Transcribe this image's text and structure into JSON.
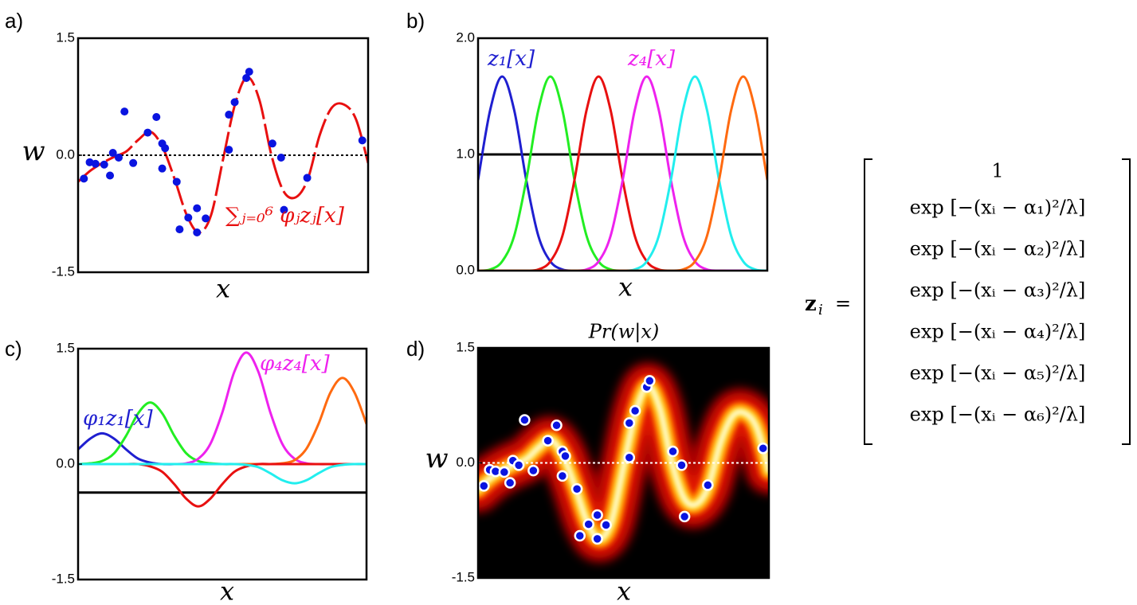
{
  "chart_data": [
    {
      "type": "line",
      "panel_label": "a)",
      "ylabel": "w",
      "xlabel": "x",
      "xlim": [
        0,
        1
      ],
      "ylim": [
        -1.5,
        1.5
      ],
      "yticks": [
        -1.5,
        {
          "value": 0,
          "label": "0.0"
        },
        1.5
      ],
      "reference_line": 0,
      "x": [
        0,
        0.0417,
        0.0833,
        0.125,
        0.1667,
        0.2083,
        0.25,
        0.2917,
        0.3333,
        0.375,
        0.4167,
        0.4583,
        0.5,
        0.5417,
        0.5833,
        0.625,
        0.6667,
        0.7083,
        0.75,
        0.7917,
        0.8333,
        0.875,
        0.9167,
        0.9583,
        1
      ],
      "series": [
        {
          "color": "#e81010",
          "style": "dashed",
          "values": [
            -0.34,
            -0.2,
            -0.1,
            -0.02,
            0.05,
            0.2,
            0.3,
            0.1,
            -0.31,
            -0.77,
            -0.99,
            -0.77,
            -0.05,
            0.66,
            1.0,
            0.71,
            0,
            -0.46,
            -0.54,
            -0.31,
            0.26,
            0.61,
            0.65,
            0.46,
            -0.1
          ]
        }
      ],
      "points": {
        "color": "#0a14e0",
        "x": [
          0.02,
          0.04,
          0.06,
          0.09,
          0.11,
          0.12,
          0.14,
          0.16,
          0.19,
          0.24,
          0.27,
          0.29,
          0.3,
          0.29,
          0.34,
          0.35,
          0.38,
          0.41,
          0.41,
          0.44,
          0.52,
          0.52,
          0.54,
          0.58,
          0.59,
          0.67,
          0.7,
          0.71,
          0.79,
          0.98
        ],
        "values": [
          -0.3,
          -0.09,
          -0.11,
          -0.12,
          -0.26,
          0.03,
          -0.03,
          0.56,
          -0.1,
          0.29,
          0.49,
          0.15,
          0.09,
          -0.17,
          -0.34,
          -0.95,
          -0.8,
          -0.99,
          -0.68,
          -0.81,
          0.07,
          0.52,
          0.68,
          0.99,
          1.07,
          0.15,
          -0.03,
          -0.7,
          -0.29,
          0.19
        ]
      },
      "annotations": [
        {
          "text": "∑ⱼ₌₀⁶ φⱼzⱼ[x]",
          "color": "#e81010"
        }
      ]
    },
    {
      "type": "line",
      "panel_label": "b)",
      "xlabel": "x",
      "xlim": [
        0,
        1
      ],
      "ylim": [
        0,
        2
      ],
      "yticks": [
        {
          "value": 0,
          "label": "0.0"
        },
        {
          "value": 1,
          "label": "1.0"
        },
        {
          "value": 2,
          "label": "2.0"
        }
      ],
      "x": [
        0,
        0.0417,
        0.0833,
        0.125,
        0.1667,
        0.2083,
        0.25,
        0.2917,
        0.3333,
        0.375,
        0.4167,
        0.4583,
        0.5,
        0.5417,
        0.5833,
        0.625,
        0.6667,
        0.7083,
        0.75,
        0.7917,
        0.8333,
        0.875,
        0.9167,
        0.9583,
        1
      ],
      "series": [
        {
          "color": "#000000",
          "x": [
            0,
            1
          ],
          "values": [
            1,
            1
          ]
        },
        {
          "color": "#1f1fd0",
          "values": [
            0.78,
            1.38,
            1.67,
            1.38,
            0.78,
            0.3,
            0.08,
            0.01,
            0,
            0,
            0,
            0,
            0,
            0,
            0,
            0,
            0,
            0,
            0,
            0,
            0,
            0,
            0,
            0,
            0
          ]
        },
        {
          "color": "#22ee22",
          "values": [
            0,
            0.01,
            0.08,
            0.3,
            0.78,
            1.38,
            1.67,
            1.38,
            0.78,
            0.3,
            0.08,
            0.01,
            0,
            0,
            0,
            0,
            0,
            0,
            0,
            0,
            0,
            0,
            0,
            0,
            0
          ]
        },
        {
          "color": "#e81010",
          "values": [
            0,
            0,
            0,
            0,
            0,
            0.01,
            0.08,
            0.3,
            0.78,
            1.38,
            1.67,
            1.38,
            0.78,
            0.3,
            0.08,
            0.01,
            0,
            0,
            0,
            0,
            0,
            0,
            0,
            0,
            0
          ]
        },
        {
          "color": "#ee22ee",
          "values": [
            0,
            0,
            0,
            0,
            0,
            0,
            0,
            0,
            0,
            0.01,
            0.08,
            0.3,
            0.78,
            1.38,
            1.67,
            1.38,
            0.78,
            0.3,
            0.08,
            0.01,
            0,
            0,
            0,
            0,
            0
          ]
        },
        {
          "color": "#22eeee",
          "values": [
            0,
            0,
            0,
            0,
            0,
            0,
            0,
            0,
            0,
            0,
            0,
            0,
            0,
            0.01,
            0.08,
            0.3,
            0.78,
            1.38,
            1.67,
            1.38,
            0.78,
            0.3,
            0.08,
            0.01,
            0
          ]
        },
        {
          "color": "#ff6a10",
          "values": [
            0,
            0,
            0,
            0,
            0,
            0,
            0,
            0,
            0,
            0,
            0,
            0,
            0,
            0,
            0,
            0,
            0,
            0.01,
            0.08,
            0.3,
            0.78,
            1.38,
            1.67,
            1.38,
            0.78
          ]
        }
      ],
      "annotations": [
        {
          "text": "z₁[x]",
          "color": "#1f1fd0"
        },
        {
          "text": "z₄[x]",
          "color": "#ee22ee"
        }
      ]
    },
    {
      "type": "line",
      "panel_label": "c)",
      "xlabel": "x",
      "xlim": [
        0,
        1
      ],
      "ylim": [
        -1.5,
        1.5
      ],
      "yticks": [
        -1.5,
        {
          "value": 0,
          "label": "0.0"
        },
        1.5
      ],
      "x": [
        0,
        0.0417,
        0.0833,
        0.125,
        0.1667,
        0.2083,
        0.25,
        0.2917,
        0.3333,
        0.375,
        0.4167,
        0.4583,
        0.5,
        0.5417,
        0.5833,
        0.625,
        0.6667,
        0.7083,
        0.75,
        0.7917,
        0.8333,
        0.875,
        0.9167,
        0.9583,
        1
      ],
      "series": [
        {
          "color": "#000000",
          "x": [
            0,
            1
          ],
          "values": [
            -0.37,
            -0.37
          ]
        },
        {
          "color": "#1f1fd0",
          "values": [
            0.19,
            0.33,
            0.4,
            0.33,
            0.19,
            0.07,
            0.02,
            0,
            0,
            0,
            0,
            0,
            0,
            0,
            0,
            0,
            0,
            0,
            0,
            0,
            0,
            0,
            0,
            0,
            0
          ]
        },
        {
          "color": "#22ee22",
          "values": [
            0,
            0.01,
            0.04,
            0.14,
            0.37,
            0.66,
            0.8,
            0.66,
            0.37,
            0.14,
            0.04,
            0.01,
            0,
            0,
            0,
            0,
            0,
            0,
            0,
            0,
            0,
            0,
            0,
            0,
            0
          ]
        },
        {
          "color": "#ee22ee",
          "values": [
            0,
            0,
            0,
            0,
            0,
            0,
            0,
            0,
            0,
            0.01,
            0.07,
            0.26,
            0.67,
            1.2,
            1.45,
            1.2,
            0.67,
            0.26,
            0.07,
            0.01,
            0,
            0,
            0,
            0,
            0
          ]
        },
        {
          "color": "#ff6a10",
          "values": [
            0,
            0,
            0,
            0,
            0,
            0,
            0,
            0,
            0,
            0,
            0,
            0,
            0,
            0,
            0,
            0,
            0,
            0.01,
            0.05,
            0.2,
            0.52,
            0.93,
            1.12,
            0.93,
            0.52
          ]
        },
        {
          "color": "#e81010",
          "values": [
            0,
            0,
            0,
            0,
            0,
            0,
            -0.03,
            -0.1,
            -0.26,
            -0.45,
            -0.55,
            -0.45,
            -0.26,
            -0.1,
            -0.03,
            0,
            0,
            0,
            0,
            0,
            0,
            0,
            0,
            0,
            0
          ]
        },
        {
          "color": "#22eeee",
          "values": [
            0,
            0,
            0,
            0,
            0,
            0,
            0,
            0,
            0,
            0,
            0,
            0,
            0,
            0,
            -0.01,
            -0.04,
            -0.12,
            -0.21,
            -0.25,
            -0.21,
            -0.12,
            -0.04,
            -0.01,
            0,
            0
          ]
        }
      ],
      "annotations": [
        {
          "text": "φ₁z₁[x]",
          "color": "#1f1fd0"
        },
        {
          "text": "φ₄z₄[x]",
          "color": "#ee22ee"
        }
      ]
    },
    {
      "type": "density",
      "panel_label": "d)",
      "title": "Pr(w|x)",
      "ylabel": "w",
      "xlabel": "x",
      "colormap": "hot",
      "xlim": [
        0,
        1
      ],
      "ylim": [
        -1.5,
        1.5
      ],
      "yticks": [
        -1.5,
        {
          "value": 0,
          "label": "0.0"
        },
        1.5
      ],
      "reference_line": 0,
      "x": [
        0,
        0.0417,
        0.0833,
        0.125,
        0.1667,
        0.2083,
        0.25,
        0.2917,
        0.3333,
        0.375,
        0.4167,
        0.4583,
        0.5,
        0.5417,
        0.5833,
        0.625,
        0.6667,
        0.7083,
        0.75,
        0.7917,
        0.8333,
        0.875,
        0.9167,
        0.9583,
        1
      ],
      "series": [
        {
          "values": [
            -0.34,
            -0.2,
            -0.1,
            -0.02,
            0.05,
            0.2,
            0.3,
            0.1,
            -0.31,
            -0.77,
            -0.99,
            -0.77,
            -0.05,
            0.66,
            1.0,
            0.71,
            0,
            -0.46,
            -0.54,
            -0.31,
            0.26,
            0.61,
            0.65,
            0.46,
            -0.1
          ]
        }
      ],
      "points": {
        "color": "#0a14e0",
        "x": [
          0.02,
          0.04,
          0.06,
          0.09,
          0.11,
          0.12,
          0.14,
          0.16,
          0.19,
          0.24,
          0.27,
          0.29,
          0.3,
          0.29,
          0.34,
          0.35,
          0.38,
          0.41,
          0.41,
          0.44,
          0.52,
          0.52,
          0.54,
          0.58,
          0.59,
          0.67,
          0.7,
          0.71,
          0.79,
          0.98
        ],
        "values": [
          -0.3,
          -0.09,
          -0.11,
          -0.12,
          -0.26,
          0.03,
          -0.03,
          0.56,
          -0.1,
          0.29,
          0.49,
          0.15,
          0.09,
          -0.17,
          -0.34,
          -0.95,
          -0.8,
          -0.99,
          -0.68,
          -0.81,
          0.07,
          0.52,
          0.68,
          0.99,
          1.07,
          0.15,
          -0.03,
          -0.7,
          -0.29,
          0.19
        ]
      }
    }
  ],
  "equation": {
    "lhs": "z",
    "lhs_sub": "i",
    "sign": "=",
    "rows": [
      "1",
      "exp [−(xᵢ − α₁)²/λ]",
      "exp [−(xᵢ − α₂)²/λ]",
      "exp [−(xᵢ − α₃)²/λ]",
      "exp [−(xᵢ − α₄)²/λ]",
      "exp [−(xᵢ − α₅)²/λ]",
      "exp [−(xᵢ − α₆)²/λ]"
    ]
  }
}
